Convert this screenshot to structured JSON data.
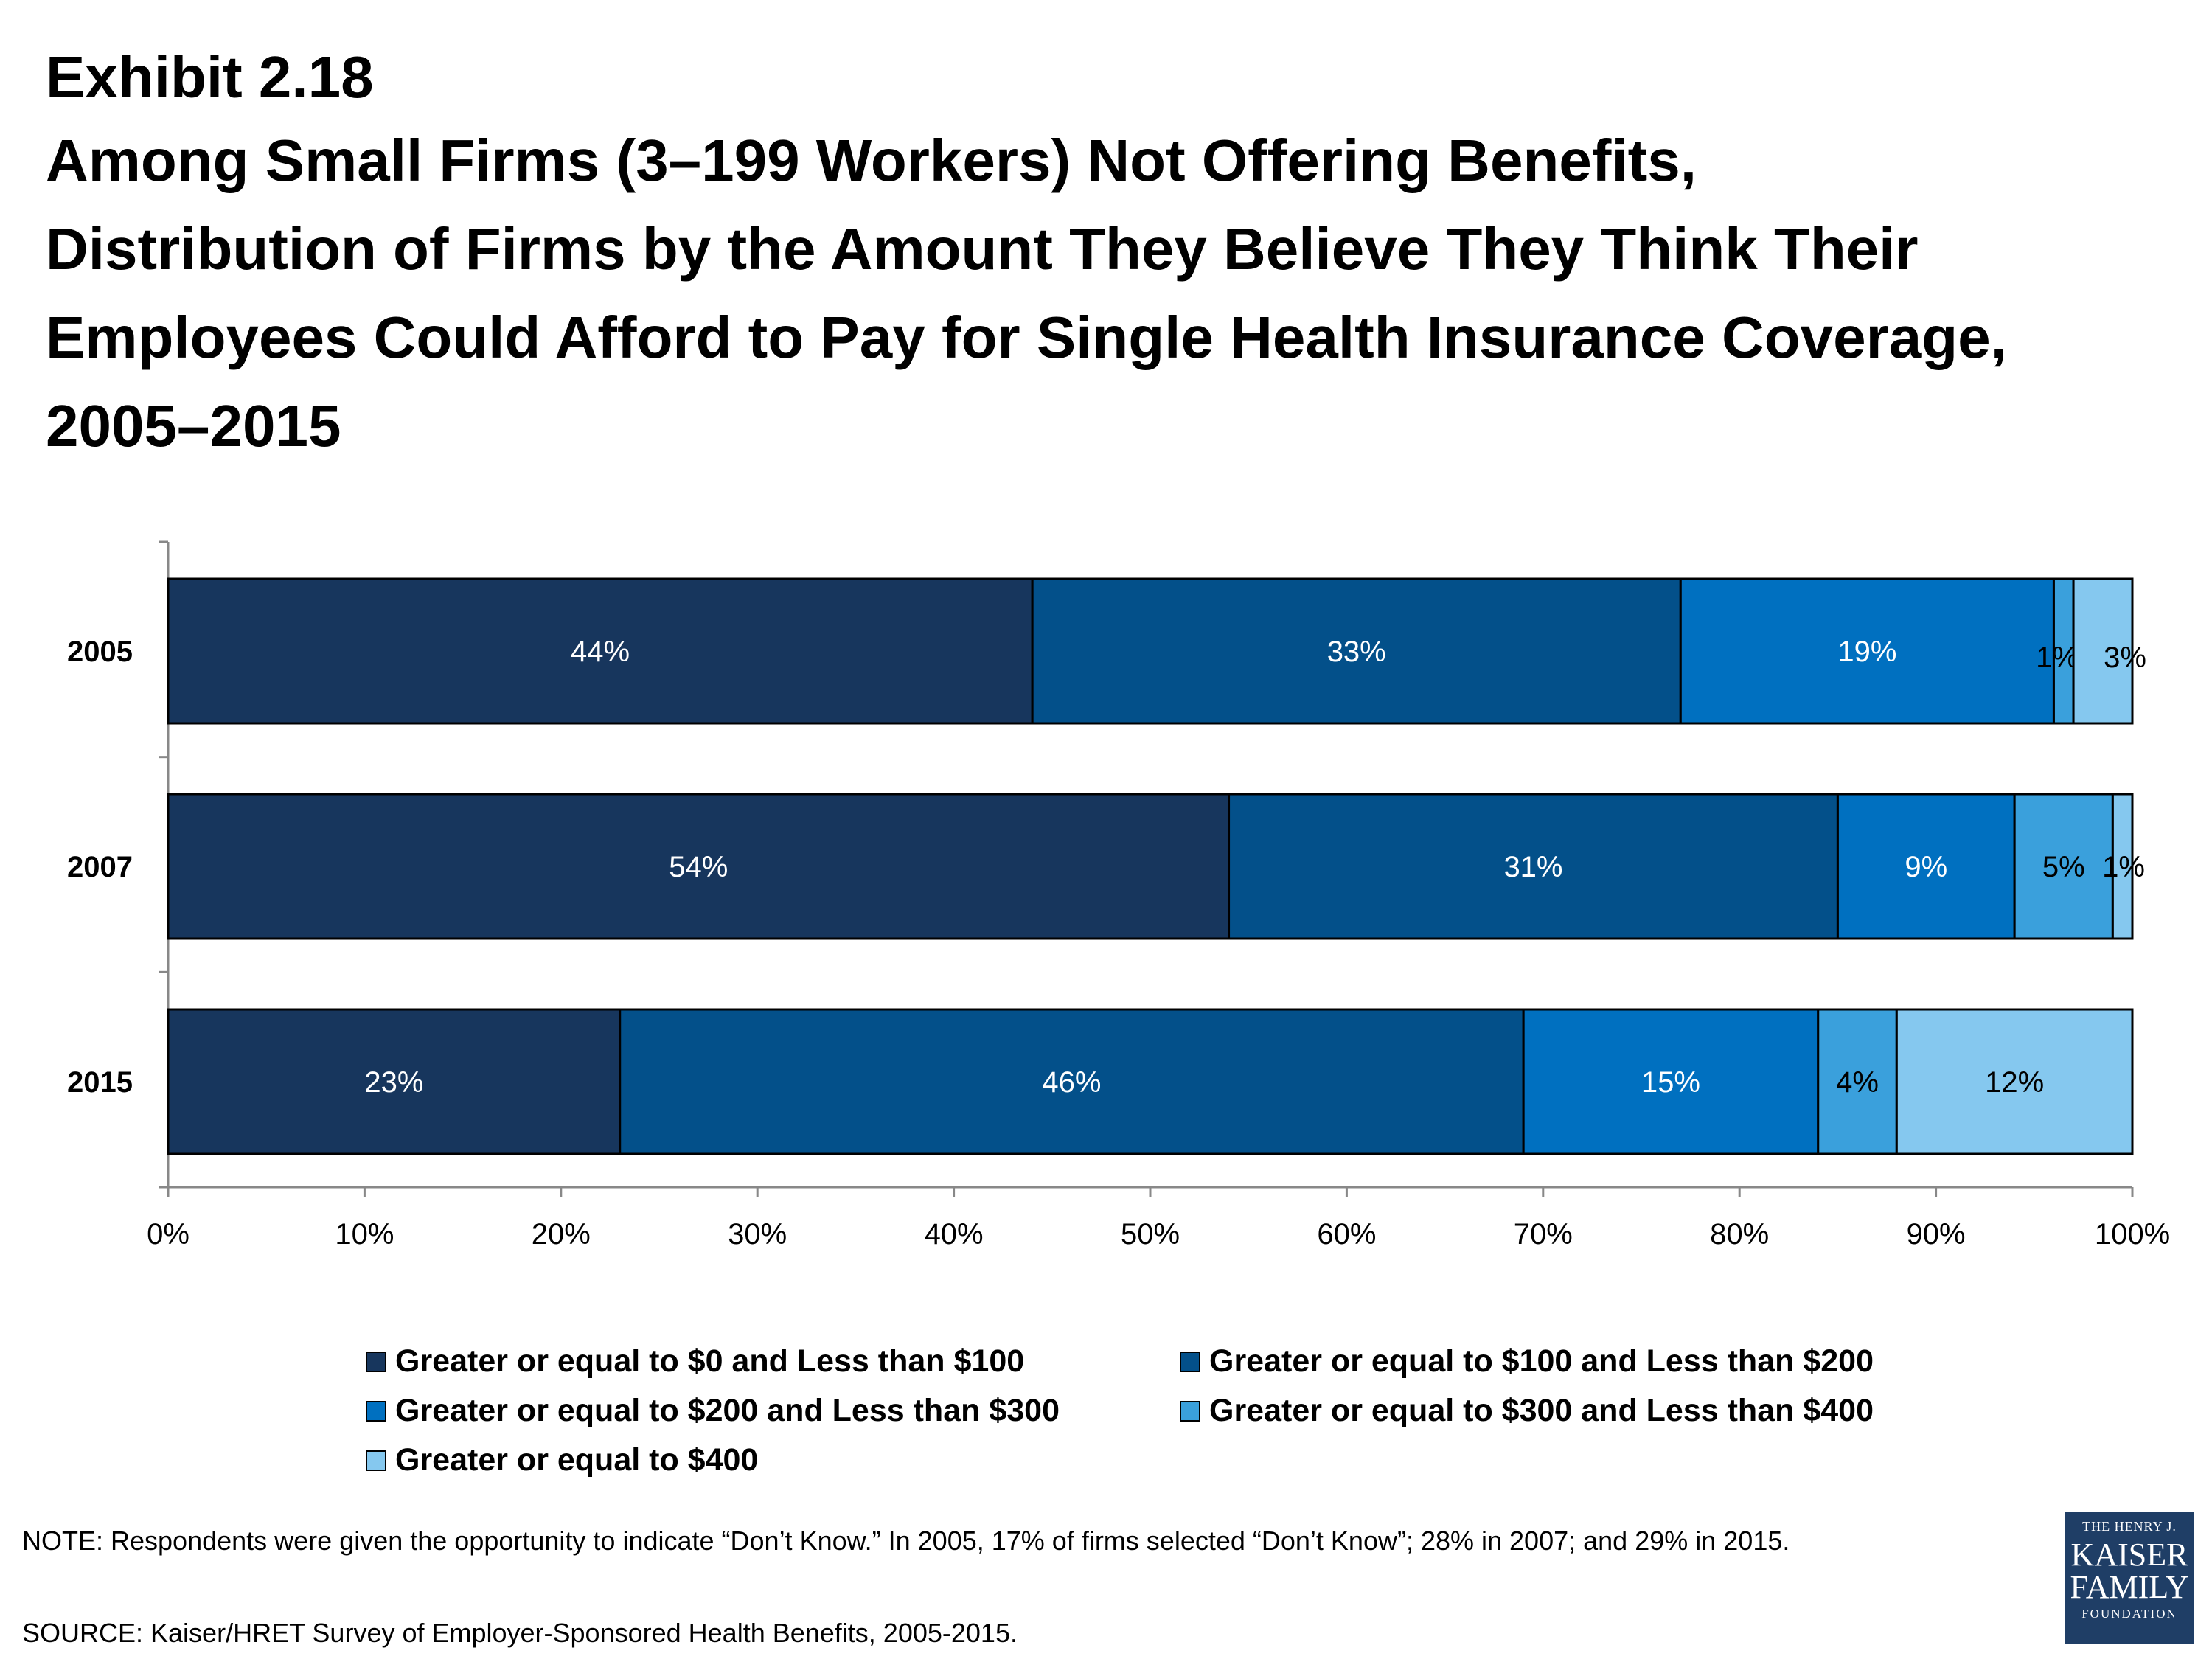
{
  "header": {
    "exhibit": "Exhibit 2.18",
    "title_lines": [
      "Among Small Firms (3–199 Workers) Not Offering Benefits,",
      "Distribution of Firms by the Amount They Believe They Think Their",
      "Employees Could Afford to Pay for Single Health Insurance Coverage,",
      "2005–2015"
    ]
  },
  "chart_data": {
    "type": "bar",
    "orientation": "horizontal",
    "stacked": true,
    "categories": [
      "2005",
      "2007",
      "2015"
    ],
    "series": [
      {
        "name": "Greater or equal to $0 and Less than $100",
        "color": "#17365d",
        "values": [
          44,
          54,
          23
        ],
        "labels": [
          "44%",
          "54%",
          "23%"
        ]
      },
      {
        "name": "Greater or equal to $100 and Less than $200",
        "color": "#03508a",
        "values": [
          33,
          31,
          46
        ],
        "labels": [
          "33%",
          "31%",
          "46%"
        ]
      },
      {
        "name": "Greater or equal to $200 and Less than $300",
        "color": "#0070c0",
        "values": [
          19,
          9,
          15
        ],
        "labels": [
          "19%",
          "9%",
          "15%"
        ]
      },
      {
        "name": "Greater or equal to $300 and Less than $400",
        "color": "#3aa0dc",
        "values": [
          1,
          5,
          4
        ],
        "labels": [
          "1%",
          "5%",
          "4%"
        ]
      },
      {
        "name": "Greater or equal to $400",
        "color": "#85c8ef",
        "values": [
          3,
          1,
          12
        ],
        "labels": [
          "3%",
          "1%",
          "12%"
        ]
      }
    ],
    "xlim": [
      0,
      100
    ],
    "x_ticks": [
      "0%",
      "10%",
      "20%",
      "30%",
      "40%",
      "50%",
      "60%",
      "70%",
      "80%",
      "90%",
      "100%"
    ],
    "grid": false,
    "legend_position": "bottom"
  },
  "footer": {
    "note": "NOTE:  Respondents were given the opportunity to indicate “Don’t Know.”  In 2005, 17% of firms selected “Don’t Know”; 28% in 2007; and 29% in 2015.",
    "source": "SOURCE: Kaiser/HRET Survey of Employer-Sponsored Health Benefits, 2005-2015."
  },
  "logo": {
    "line1": "THE HENRY J.",
    "line2": "KAISER",
    "line3": "FAMILY",
    "line4": "FOUNDATION"
  }
}
